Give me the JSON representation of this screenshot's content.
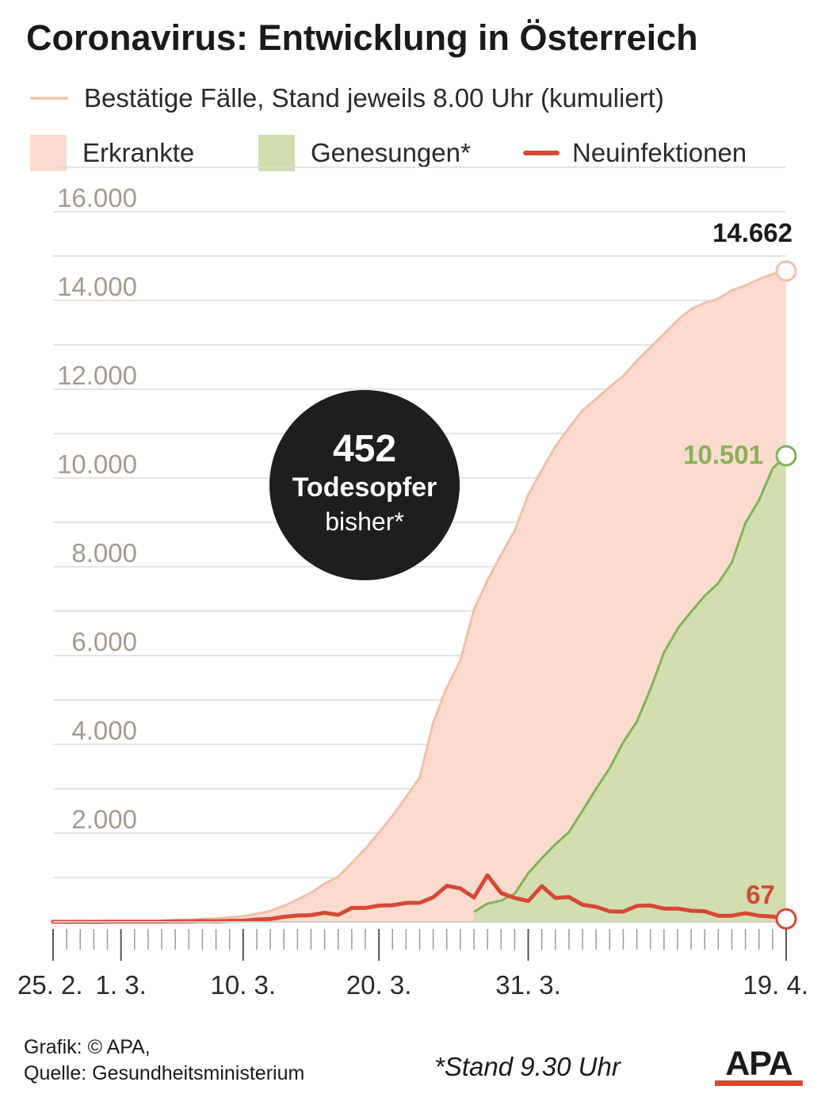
{
  "header": {
    "title": "Coronavirus: Entwicklung in Österreich",
    "subtitle": "Bestätige Fälle, Stand jeweils 8.00 Uhr (kumuliert)"
  },
  "legend": {
    "items": [
      {
        "label": "Erkrankte",
        "color": "#fadbcd",
        "kind": "area"
      },
      {
        "label": "Genesungen*",
        "color": "#d2deaf",
        "kind": "area"
      },
      {
        "label": "Neuinfektionen",
        "color": "#d64834",
        "kind": "line"
      }
    ]
  },
  "callout": {
    "number": "452",
    "line1": "Todesopfer",
    "line2": "bisher*"
  },
  "end_labels": {
    "confirmed": "14.662",
    "recovered": "10.501",
    "new_infections": "67"
  },
  "footer": {
    "credit": "Grafik: © APA,",
    "source": "Quelle: Gesundheitsministerium",
    "footnote": "*Stand 9.30 Uhr",
    "logo": "APA"
  },
  "colors": {
    "confirmed_fill": "#fadbcd",
    "confirmed_line": "#f3bfa9",
    "recovered_fill": "#d2deaf",
    "recovered_line": "#7fb25c",
    "new_line": "#d64834",
    "axis_text": "#a39b8f",
    "grid": "#dcdcdc",
    "callout_bg": "#1e1e1e"
  },
  "chart_data": {
    "type": "area",
    "x_start": "25.2.",
    "x_end": "19.4.",
    "x_tick_labels": [
      "25. 2.",
      "1. 3.",
      "10. 3.",
      "20. 3.",
      "31. 3.",
      "19. 4."
    ],
    "x_tick_positions": [
      "25.2.",
      "1.3.",
      "10.3.",
      "20.3.",
      "31.3.",
      "19.4."
    ],
    "y_tick_labels": [
      "2.000",
      "4.000",
      "6.000",
      "8.000",
      "10.000",
      "12.000",
      "14.000",
      "16.000"
    ],
    "ylim": [
      0,
      16000
    ],
    "grid": true,
    "series": [
      {
        "name": "Erkrankte",
        "kind": "area",
        "x": [
          "25.2.",
          "26.2.",
          "27.2.",
          "28.2.",
          "29.2.",
          "1.3.",
          "2.3.",
          "3.3.",
          "4.3.",
          "5.3.",
          "6.3.",
          "7.3.",
          "8.3.",
          "9.3.",
          "10.3.",
          "11.3.",
          "12.3.",
          "13.3.",
          "14.3.",
          "15.3.",
          "16.3.",
          "17.3.",
          "18.3.",
          "19.3.",
          "20.3.",
          "21.3.",
          "22.3.",
          "23.3.",
          "24.3.",
          "25.3.",
          "26.3.",
          "27.3.",
          "28.3.",
          "29.3.",
          "30.3.",
          "31.3.",
          "1.4.",
          "2.4.",
          "3.4.",
          "4.4.",
          "5.4.",
          "6.4.",
          "7.4.",
          "8.4.",
          "9.4.",
          "10.4.",
          "11.4.",
          "12.4.",
          "13.4.",
          "14.4.",
          "15.4.",
          "16.4.",
          "17.4.",
          "18.4.",
          "19.4."
        ],
        "values": [
          2,
          2,
          3,
          3,
          6,
          10,
          14,
          18,
          24,
          37,
          47,
          66,
          79,
          104,
          131,
          182,
          246,
          361,
          504,
          655,
          860,
          1018,
          1332,
          1646,
          2013,
          2388,
          2814,
          3244,
          4486,
          5282,
          5888,
          7029,
          7697,
          8271,
          8813,
          9618,
          10180,
          10711,
          11129,
          11524,
          11781,
          12051,
          12297,
          12639,
          12942,
          13244,
          13555,
          13806,
          13945,
          14041,
          14226,
          14336,
          14476,
          14595,
          14662
        ]
      },
      {
        "name": "Genesungen*",
        "kind": "area",
        "x": [
          "27.3.",
          "28.3.",
          "29.3.",
          "30.3.",
          "31.3.",
          "1.4.",
          "2.4.",
          "3.4.",
          "4.4.",
          "5.4.",
          "6.4.",
          "7.4.",
          "8.4.",
          "9.4.",
          "10.4.",
          "11.4.",
          "12.4.",
          "13.4.",
          "14.4.",
          "15.4.",
          "16.4.",
          "17.4.",
          "18.4.",
          "19.4."
        ],
        "values": [
          225,
          410,
          479,
          636,
          1095,
          1436,
          1749,
          2022,
          2507,
          2998,
          3463,
          4046,
          4512,
          5240,
          6064,
          6604,
          6987,
          7343,
          7633,
          8098,
          8986,
          9500,
          10214,
          10501
        ]
      },
      {
        "name": "Neuinfektionen",
        "kind": "line",
        "x": [
          "25.2.",
          "26.2.",
          "27.2.",
          "28.2.",
          "29.2.",
          "1.3.",
          "2.3.",
          "3.3.",
          "4.3.",
          "5.3.",
          "6.3.",
          "7.3.",
          "8.3.",
          "9.3.",
          "10.3.",
          "11.3.",
          "12.3.",
          "13.3.",
          "14.3.",
          "15.3.",
          "16.3.",
          "17.3.",
          "18.3.",
          "19.3.",
          "20.3.",
          "21.3.",
          "22.3.",
          "23.3.",
          "24.3.",
          "25.3.",
          "26.3.",
          "27.3.",
          "28.3.",
          "29.3.",
          "30.3.",
          "31.3.",
          "1.4.",
          "2.4.",
          "3.4.",
          "4.4.",
          "5.4.",
          "6.4.",
          "7.4.",
          "8.4.",
          "9.4.",
          "10.4.",
          "11.4.",
          "12.4.",
          "13.4.",
          "14.4.",
          "15.4.",
          "16.4.",
          "17.4.",
          "18.4.",
          "19.4."
        ],
        "values": [
          2,
          0,
          1,
          0,
          3,
          4,
          4,
          4,
          6,
          13,
          10,
          19,
          13,
          25,
          27,
          51,
          64,
          115,
          143,
          151,
          205,
          158,
          314,
          314,
          367,
          375,
          426,
          430,
          553,
          813,
          754,
          550,
          1050,
          650,
          540,
          470,
          805,
          540,
          560,
          385,
          340,
          240,
          230,
          360,
          370,
          300,
          300,
          250,
          240,
          140,
          140,
          195,
          140,
          120,
          67
        ]
      }
    ]
  }
}
